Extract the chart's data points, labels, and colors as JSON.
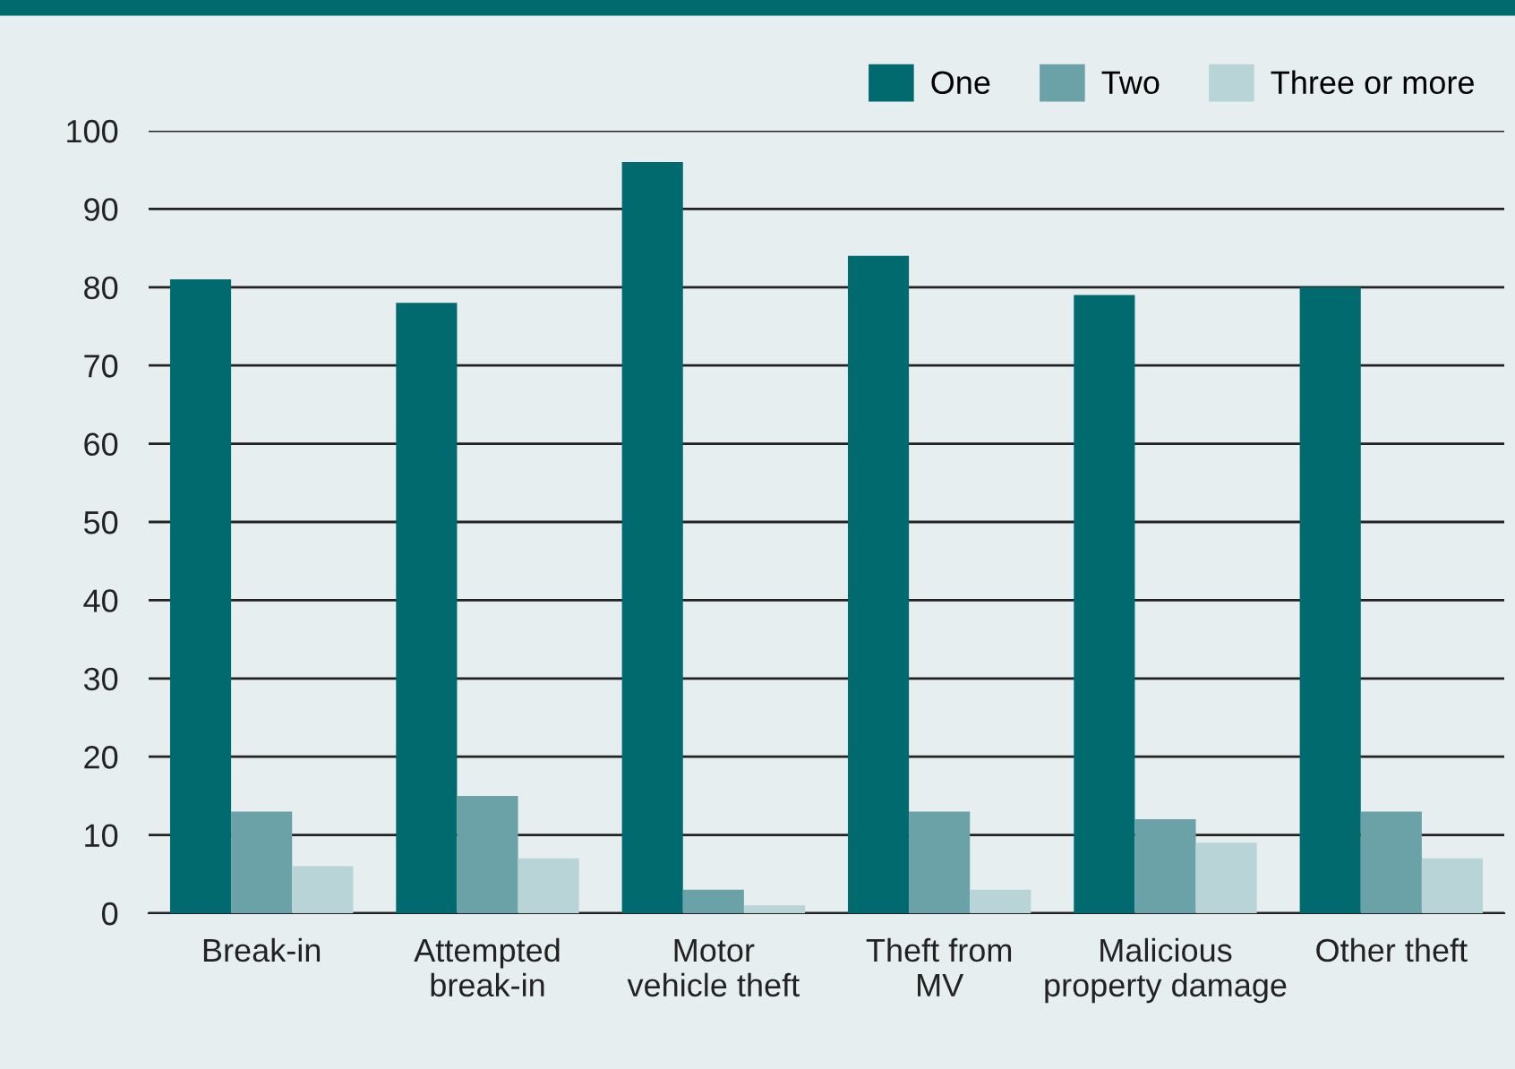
{
  "chart_data": {
    "type": "bar",
    "categories": [
      "Break-in",
      "Attempted\nbreak-in",
      "Motor\nvehicle theft",
      "Theft from\nMV",
      "Malicious\nproperty damage",
      "Other theft"
    ],
    "series": [
      {
        "name": "One",
        "color": "#006a6e",
        "values": [
          81,
          78,
          96,
          84,
          79,
          80
        ]
      },
      {
        "name": "Two",
        "color": "#6aa2a7",
        "values": [
          13,
          15,
          3,
          13,
          12,
          13
        ]
      },
      {
        "name": "Three or more",
        "color": "#b8d4d7",
        "values": [
          6,
          7,
          1,
          3,
          9,
          7
        ]
      }
    ],
    "ylim": [
      0,
      100
    ],
    "yticks": [
      0,
      10,
      20,
      30,
      40,
      50,
      60,
      70,
      80,
      90,
      100
    ],
    "grid": "y",
    "legend": "top right"
  }
}
